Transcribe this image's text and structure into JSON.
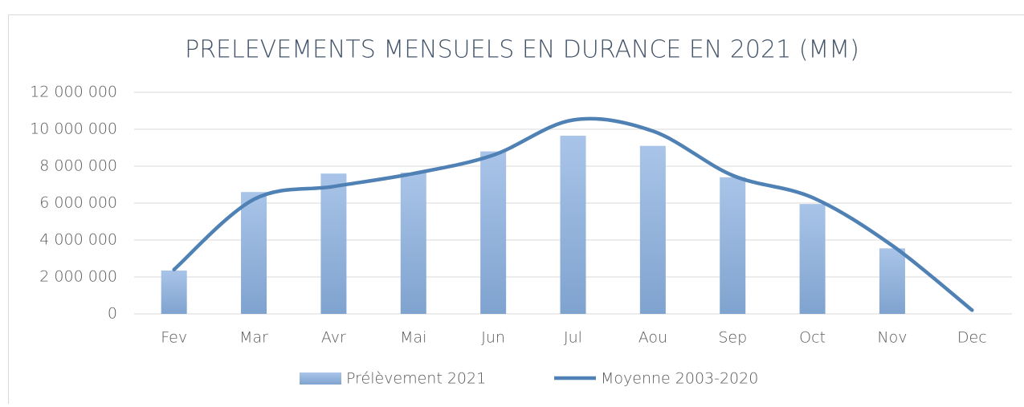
{
  "chart_data": {
    "type": "bar",
    "title": "PRELEVEMENTS MENSUELS EN DURANCE EN 2021 (MM)",
    "categories": [
      "Fev",
      "Mar",
      "Avr",
      "Mai",
      "Jun",
      "Jul",
      "Aou",
      "Sep",
      "Oct",
      "Nov",
      "Dec"
    ],
    "series": [
      {
        "name": "Prélèvement 2021",
        "type": "bar",
        "color": "#8fb0db",
        "values": [
          2350000,
          6600000,
          7600000,
          7650000,
          8800000,
          9650000,
          9100000,
          7400000,
          5950000,
          3550000,
          null
        ]
      },
      {
        "name": "Moyenne 2003-2020",
        "type": "line",
        "color": "#4f81b5",
        "values": [
          2400000,
          6200000,
          6900000,
          7600000,
          8600000,
          10500000,
          9900000,
          7500000,
          6300000,
          3700000,
          200000
        ]
      }
    ],
    "ylim": [
      0,
      12000000
    ],
    "yticks": [
      0,
      {
        "value": 2000000,
        "label": "2 000 000"
      },
      {
        "value": 4000000,
        "label": "4 000 000"
      },
      {
        "value": 6000000,
        "label": "6 000 000"
      },
      {
        "value": 8000000,
        "label": "8 000 000"
      },
      {
        "value": 10000000,
        "label": "10 000 000"
      },
      {
        "value": 12000000,
        "label": "12 000 000"
      }
    ],
    "grid": true,
    "legend": "bottom"
  }
}
